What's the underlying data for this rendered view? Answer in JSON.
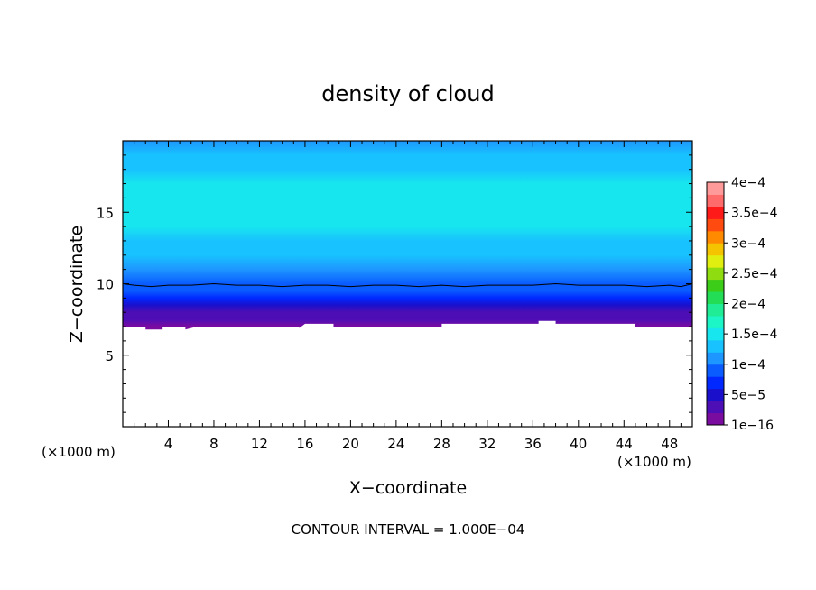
{
  "chart_data": {
    "type": "heatmap",
    "title": "density of cloud",
    "xlabel": "X−coordinate",
    "ylabel": "Z−coordinate",
    "x_unit_label": "(×1000 m)",
    "y_unit_label": "(×1000 m)",
    "xlim": [
      0,
      50
    ],
    "ylim": [
      0,
      20
    ],
    "x_ticks": [
      4,
      8,
      12,
      16,
      20,
      24,
      28,
      32,
      36,
      40,
      44,
      48
    ],
    "y_ticks": [
      5,
      10,
      15
    ],
    "footer": "CONTOUR INTERVAL = 1.000E−04",
    "colorbar": {
      "labels": [
        {
          "value": 1e-16,
          "text": "1e−16"
        },
        {
          "value": 5e-05,
          "text": "5e−5"
        },
        {
          "value": 0.0001,
          "text": "1e−4"
        },
        {
          "value": 0.00015,
          "text": "1.5e−4"
        },
        {
          "value": 0.0002,
          "text": "2e−4"
        },
        {
          "value": 0.00025,
          "text": "2.5e−4"
        },
        {
          "value": 0.0003,
          "text": "3e−4"
        },
        {
          "value": 0.00035,
          "text": "3.5e−4"
        },
        {
          "value": 0.0004,
          "text": "4e−4"
        }
      ],
      "colors": [
        "#7b0ca0",
        "#4d0fb5",
        "#1a10cc",
        "#0028ff",
        "#0a5cff",
        "#1e96ff",
        "#18c2ff",
        "#17e6ee",
        "#1cf5c6",
        "#20ec96",
        "#22dd55",
        "#3ccd18",
        "#8fdd10",
        "#e0ef10",
        "#f5c400",
        "#ff8a00",
        "#ff4a10",
        "#ff1a1a",
        "#ff6a6a",
        "#ff9a9a"
      ]
    },
    "vertical_profile": [
      {
        "z": 7.0,
        "value": 1e-05
      },
      {
        "z": 7.5,
        "value": 2.5e-05
      },
      {
        "z": 8.0,
        "value": 4e-05
      },
      {
        "z": 8.5,
        "value": 5.5e-05
      },
      {
        "z": 9.0,
        "value": 7e-05
      },
      {
        "z": 9.5,
        "value": 8.5e-05
      },
      {
        "z": 10.0,
        "value": 0.0001
      },
      {
        "z": 11.0,
        "value": 0.000115
      },
      {
        "z": 12.0,
        "value": 0.000128
      },
      {
        "z": 13.0,
        "value": 0.00014
      },
      {
        "z": 14.0,
        "value": 0.000148
      },
      {
        "z": 15.0,
        "value": 0.000152
      },
      {
        "z": 16.0,
        "value": 0.00015
      },
      {
        "z": 17.0,
        "value": 0.000142
      },
      {
        "z": 18.0,
        "value": 0.000132
      },
      {
        "z": 19.0,
        "value": 0.000122
      },
      {
        "z": 20.0,
        "value": 0.000112
      }
    ],
    "cloud_base": [
      {
        "x": 0,
        "z": 7.0
      },
      {
        "x": 2.0,
        "z": 7.0
      },
      {
        "x": 2.0,
        "z": 6.8
      },
      {
        "x": 3.5,
        "z": 6.8
      },
      {
        "x": 3.5,
        "z": 7.0
      },
      {
        "x": 5.5,
        "z": 7.0
      },
      {
        "x": 5.5,
        "z": 6.8
      },
      {
        "x": 6.5,
        "z": 7.0
      },
      {
        "x": 15.5,
        "z": 7.0
      },
      {
        "x": 15.5,
        "z": 6.9
      },
      {
        "x": 16.0,
        "z": 7.2
      },
      {
        "x": 18.5,
        "z": 7.2
      },
      {
        "x": 18.5,
        "z": 7.0
      },
      {
        "x": 28.0,
        "z": 7.0
      },
      {
        "x": 28.0,
        "z": 7.2
      },
      {
        "x": 36.5,
        "z": 7.2
      },
      {
        "x": 36.5,
        "z": 7.4
      },
      {
        "x": 38.0,
        "z": 7.4
      },
      {
        "x": 38.0,
        "z": 7.2
      },
      {
        "x": 45.0,
        "z": 7.2
      },
      {
        "x": 45.0,
        "z": 7.0
      },
      {
        "x": 50,
        "z": 7.0
      }
    ],
    "contour_1e-4": [
      {
        "x": 0,
        "z": 10.0
      },
      {
        "x": 1.0,
        "z": 9.9
      },
      {
        "x": 2.5,
        "z": 9.8
      },
      {
        "x": 4.0,
        "z": 9.9
      },
      {
        "x": 6.0,
        "z": 9.9
      },
      {
        "x": 8.0,
        "z": 10.0
      },
      {
        "x": 10.0,
        "z": 9.9
      },
      {
        "x": 12.0,
        "z": 9.9
      },
      {
        "x": 14.0,
        "z": 9.8
      },
      {
        "x": 16.0,
        "z": 9.9
      },
      {
        "x": 18.0,
        "z": 9.9
      },
      {
        "x": 20.0,
        "z": 9.8
      },
      {
        "x": 22.0,
        "z": 9.9
      },
      {
        "x": 24.0,
        "z": 9.9
      },
      {
        "x": 26.0,
        "z": 9.8
      },
      {
        "x": 28.0,
        "z": 9.9
      },
      {
        "x": 30.0,
        "z": 9.8
      },
      {
        "x": 32.0,
        "z": 9.9
      },
      {
        "x": 34.0,
        "z": 9.9
      },
      {
        "x": 36.0,
        "z": 9.9
      },
      {
        "x": 38.0,
        "z": 10.0
      },
      {
        "x": 40.0,
        "z": 9.9
      },
      {
        "x": 42.0,
        "z": 9.9
      },
      {
        "x": 44.0,
        "z": 9.9
      },
      {
        "x": 46.0,
        "z": 9.8
      },
      {
        "x": 48.0,
        "z": 9.9
      },
      {
        "x": 49.0,
        "z": 9.8
      },
      {
        "x": 50,
        "z": 10.0
      }
    ]
  }
}
